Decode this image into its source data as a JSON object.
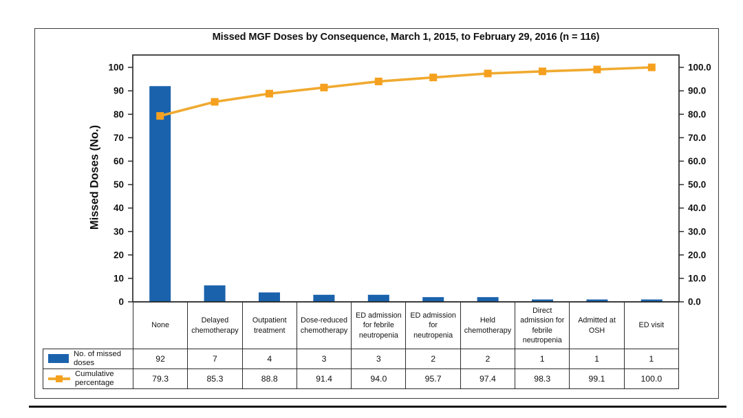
{
  "figure": {
    "title": "Missed MGF Doses by Consequence, March 1, 2015, to February 29, 2016 (n = 116)"
  },
  "chart_data": {
    "type": "bar",
    "subtype": "pareto-with-cumulative-line",
    "title": "Missed MGF Doses by Consequence, March 1, 2015, to February 29, 2016 (n = 116)",
    "categories": [
      "None",
      "Delayed chemotherapy",
      "Outpatient treatment",
      "Dose-reduced chemotherapy",
      "ED admission for febrile neutropenia",
      "ED admission for neutropenia",
      "Held chemotherapy",
      "Direct admission for febrile neutropenia",
      "Admitted at OSH",
      "ED visit"
    ],
    "series": [
      {
        "name": "No. of missed doses",
        "mark": "bar",
        "axis": "left",
        "color": "#1B62AC",
        "values": [
          92,
          7,
          4,
          3,
          3,
          2,
          2,
          1,
          1,
          1
        ],
        "labels": [
          "92",
          "7",
          "4",
          "3",
          "3",
          "2",
          "2",
          "1",
          "1",
          "1"
        ]
      },
      {
        "name": "Cumulative percentage",
        "mark": "line",
        "axis": "right",
        "color": "#F0AA30",
        "marker": "square",
        "marker_color": "#F5A01E",
        "values": [
          79.3,
          85.3,
          88.8,
          91.4,
          94.0,
          95.7,
          97.4,
          98.3,
          99.1,
          100.0
        ],
        "labels": [
          "79.3",
          "85.3",
          "88.8",
          "91.4",
          "94.0",
          "95.7",
          "97.4",
          "98.3",
          "99.1",
          "100.0"
        ]
      }
    ],
    "left_axis": {
      "label": "Missed Doses (No.)",
      "min": 0,
      "max": 100,
      "step": 10,
      "tick_labels": [
        "0",
        "10",
        "20",
        "30",
        "40",
        "50",
        "60",
        "70",
        "80",
        "90",
        "100"
      ]
    },
    "right_axis": {
      "label": "",
      "min": 0,
      "max": 100,
      "step": 10,
      "tick_labels": [
        "0.0",
        "10.0",
        "20.0",
        "30.0",
        "40.0",
        "50.0",
        "60.0",
        "70.0",
        "80.0",
        "90.0",
        "100.0"
      ]
    },
    "grid": false,
    "legend_position": "table-rows-left",
    "axis_color": "#2B2B2B",
    "total_n": 116
  }
}
